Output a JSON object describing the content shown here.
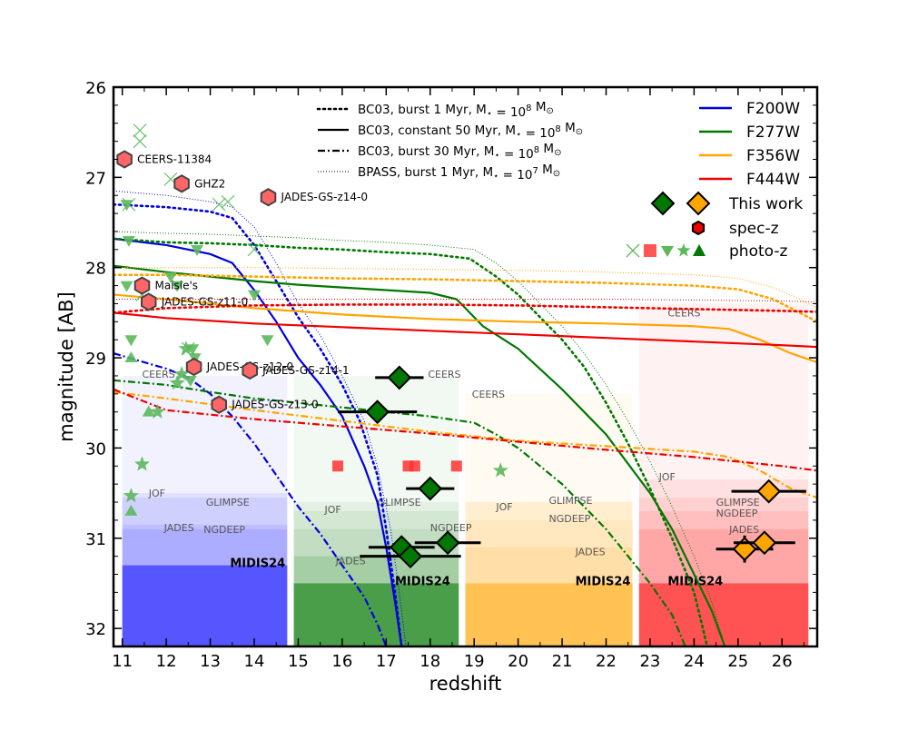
{
  "chart_data": {
    "type": "scatter",
    "title": "",
    "xlabel": "redshift",
    "ylabel": "magnitude [AB]",
    "xlim": [
      10.8,
      26.8
    ],
    "ylim": [
      32.2,
      26.0
    ],
    "x_ticks": [
      11,
      12,
      13,
      14,
      15,
      16,
      17,
      18,
      19,
      20,
      21,
      22,
      23,
      24,
      25,
      26
    ],
    "y_ticks": [
      26,
      27,
      28,
      29,
      30,
      31,
      32
    ],
    "grid": false,
    "colors": {
      "F200W": "#0000dd",
      "F277W": "#007700",
      "F356W": "#ffa500",
      "F444W": "#ee0000",
      "photo_green": "#5cb85c",
      "spec_red": "#ff6666"
    },
    "legend_models": {
      "placement": "top-center",
      "entries": [
        {
          "label": "BC03, burst 1 Myr, M$_\\star$ = 10$^8$ M$_\\odot$",
          "text": "BC03, burst 1 Myr, M",
          "sub": "⋆",
          "mid": " = 10",
          "sup": "8",
          "tail": " M",
          "tailsub": "⊙",
          "style": "dotted"
        },
        {
          "label": "BC03, constant 50 Myr",
          "text": "BC03, constant 50 Myr, M",
          "sub": "⋆",
          "mid": " = 10",
          "sup": "8",
          "tail": " M",
          "tailsub": "⊙",
          "style": "solid"
        },
        {
          "label": "BC03, burst 30 Myr",
          "text": "BC03, burst 30 Myr, M",
          "sub": "⋆",
          "mid": " = 10",
          "sup": "8",
          "tail": " M",
          "tailsub": "⊙",
          "style": "dashdot"
        },
        {
          "label": "BPASS, burst 1 Myr",
          "text": "BPASS, burst 1 Myr, M",
          "sub": "⋆",
          "mid": " = 10",
          "sup": "7",
          "tail": " M",
          "tailsub": "⊙",
          "style": "finedotted"
        }
      ]
    },
    "legend_filters": {
      "placement": "top-right",
      "entries": [
        {
          "label": "F200W",
          "color": "#0000dd"
        },
        {
          "label": "F277W",
          "color": "#007700"
        },
        {
          "label": "F356W",
          "color": "#ffa500"
        },
        {
          "label": "F444W",
          "color": "#ee0000"
        }
      ],
      "markers": [
        {
          "label": "This work"
        },
        {
          "label": "spec-z"
        },
        {
          "label": "photo-z"
        }
      ]
    },
    "survey_regions": [
      {
        "filter": "F200W",
        "x0": 11.0,
        "x1": 14.75,
        "color": "#0000ff",
        "levels": [
          {
            "name": "CEERS",
            "mag": 29.2,
            "opacity": 0.05,
            "label_x": 11.45,
            "label_y": 29.18
          },
          {
            "name": "JOF",
            "mag": 30.5,
            "opacity": 0.07,
            "label_x": 11.6,
            "label_y": 30.5
          },
          {
            "name": "GLIMPSE",
            "mag": 30.55,
            "opacity": 0.07,
            "label_x": 12.9,
            "label_y": 30.6
          },
          {
            "name": "JADES",
            "mag": 30.85,
            "opacity": 0.08,
            "label_x": 11.95,
            "label_y": 30.88
          },
          {
            "name": "NGDEEP",
            "mag": 30.9,
            "opacity": 0.09,
            "label_x": 12.85,
            "label_y": 30.9
          },
          {
            "name": "MIDIS24",
            "mag": 31.3,
            "opacity": 0.5,
            "label_x": 13.45,
            "label_y": 31.28
          }
        ]
      },
      {
        "filter": "F277W",
        "x0": 14.9,
        "x1": 18.65,
        "color": "#007700",
        "levels": [
          {
            "name": "CEERS",
            "mag": 29.2,
            "opacity": 0.05,
            "label_x": 18.95,
            "label_y": 29.4
          },
          {
            "name": "CEERS",
            "mag": 29.2,
            "opacity": 0.0,
            "label_x": 17.95,
            "label_y": 29.18
          },
          {
            "name": "JOF",
            "mag": 30.6,
            "opacity": 0.06,
            "label_x": 15.6,
            "label_y": 30.68
          },
          {
            "name": "GLIMPSE",
            "mag": 30.7,
            "opacity": 0.07,
            "label_x": 16.8,
            "label_y": 30.6
          },
          {
            "name": "NGDEEP",
            "mag": 30.9,
            "opacity": 0.08,
            "label_x": 18.0,
            "label_y": 30.88
          },
          {
            "name": "JADES",
            "mag": 31.2,
            "opacity": 0.15,
            "label_x": 15.85,
            "label_y": 31.25
          },
          {
            "name": "MIDIS24",
            "mag": 31.5,
            "opacity": 0.55,
            "label_x": 17.2,
            "label_y": 31.48
          }
        ]
      },
      {
        "filter": "F356W",
        "x0": 18.8,
        "x1": 22.6,
        "color": "#ffa500",
        "levels": [
          {
            "name": "CEERS",
            "mag": 29.4,
            "opacity": 0.05,
            "label_x": 0,
            "label_y": 0
          },
          {
            "name": "JOF",
            "mag": 30.6,
            "opacity": 0.07,
            "label_x": 19.5,
            "label_y": 30.65
          },
          {
            "name": "GLIMPSE",
            "mag": 30.6,
            "opacity": 0.07,
            "label_x": 20.7,
            "label_y": 30.58
          },
          {
            "name": "NGDEEP",
            "mag": 30.8,
            "opacity": 0.08,
            "label_x": 20.7,
            "label_y": 30.78
          },
          {
            "name": "JADES",
            "mag": 31.1,
            "opacity": 0.12,
            "label_x": 21.3,
            "label_y": 31.15
          },
          {
            "name": "MIDIS24",
            "mag": 31.5,
            "opacity": 0.5,
            "label_x": 21.3,
            "label_y": 31.48
          }
        ]
      },
      {
        "filter": "F444W",
        "x0": 22.75,
        "x1": 26.6,
        "color": "#ff0000",
        "levels": [
          {
            "name": "CEERS",
            "mag": 28.4,
            "opacity": 0.05,
            "label_x": 23.4,
            "label_y": 28.5
          },
          {
            "name": "JOF",
            "mag": 30.35,
            "opacity": 0.07,
            "label_x": 23.2,
            "label_y": 30.32
          },
          {
            "name": "GLIMPSE",
            "mag": 30.55,
            "opacity": 0.07,
            "label_x": 24.5,
            "label_y": 30.6
          },
          {
            "name": "NGDEEP",
            "mag": 30.7,
            "opacity": 0.08,
            "label_x": 24.5,
            "label_y": 30.72
          },
          {
            "name": "JADES",
            "mag": 30.9,
            "opacity": 0.12,
            "label_x": 24.8,
            "label_y": 30.9
          },
          {
            "name": "MIDIS24",
            "mag": 31.5,
            "opacity": 0.5,
            "label_x": 23.4,
            "label_y": 31.48
          }
        ]
      }
    ],
    "model_curves": [
      {
        "filter": "F200W",
        "style": "solid",
        "x": [
          10.8,
          12,
          13,
          13.5,
          14,
          14.5,
          15,
          15.5,
          16,
          16.5,
          16.8,
          17,
          17.2,
          17.35
        ],
        "y": [
          27.68,
          27.75,
          27.85,
          27.95,
          28.25,
          28.6,
          29.0,
          29.3,
          29.65,
          30.2,
          30.6,
          31.1,
          31.7,
          32.2
        ]
      },
      {
        "filter": "F200W",
        "style": "dotted",
        "x": [
          10.8,
          12,
          13,
          13.5,
          14,
          14.5,
          15,
          15.5,
          16,
          16.4,
          16.8,
          17,
          17.2,
          17.35
        ],
        "y": [
          27.3,
          27.33,
          27.38,
          27.45,
          27.75,
          28.15,
          28.55,
          28.9,
          29.3,
          29.7,
          30.3,
          30.9,
          31.6,
          32.2
        ]
      },
      {
        "filter": "F200W",
        "style": "dashdot",
        "x": [
          10.8,
          11.5,
          12,
          12.5,
          13,
          13.5,
          14,
          14.5,
          15,
          15.5,
          16,
          16.5,
          16.8,
          17.0
        ],
        "y": [
          28.95,
          29.05,
          29.12,
          29.22,
          29.4,
          29.65,
          29.95,
          30.3,
          30.65,
          30.95,
          31.3,
          31.65,
          31.95,
          32.2
        ]
      },
      {
        "filter": "F200W",
        "style": "finedotted",
        "x": [
          10.8,
          12,
          13,
          13.5,
          14,
          14.5,
          15,
          15.5,
          16,
          16.5,
          16.8,
          17.1,
          17.3,
          17.45
        ],
        "y": [
          27.15,
          27.2,
          27.27,
          27.33,
          27.55,
          27.95,
          28.4,
          28.75,
          29.2,
          29.7,
          30.2,
          30.9,
          31.6,
          32.2
        ]
      },
      {
        "filter": "F277W",
        "style": "solid",
        "x": [
          10.8,
          12,
          13,
          14,
          15,
          16,
          17,
          18,
          18.6,
          19.2,
          20,
          21,
          22,
          23,
          23.5,
          24,
          24.4,
          24.7
        ],
        "y": [
          27.98,
          28.05,
          28.1,
          28.15,
          28.19,
          28.22,
          28.25,
          28.28,
          28.35,
          28.65,
          28.9,
          29.35,
          29.85,
          30.5,
          30.9,
          31.4,
          31.8,
          32.2
        ]
      },
      {
        "filter": "F277W",
        "style": "dotted",
        "x": [
          10.8,
          12,
          13,
          14,
          15,
          16,
          17,
          18,
          18.9,
          19.5,
          20,
          20.5,
          21,
          21.5,
          22,
          22.5,
          23,
          23.5,
          24,
          24.3
        ],
        "y": [
          27.68,
          27.72,
          27.73,
          27.75,
          27.78,
          27.8,
          27.83,
          27.85,
          27.9,
          28.1,
          28.3,
          28.55,
          28.8,
          29.1,
          29.5,
          29.95,
          30.45,
          31.0,
          31.6,
          32.2
        ]
      },
      {
        "filter": "F277W",
        "style": "dashdot",
        "x": [
          10.8,
          12,
          13,
          14,
          15,
          16,
          17,
          18,
          19,
          19.5,
          20,
          20.5,
          21,
          21.5,
          22,
          22.5,
          23,
          23.5,
          23.8
        ],
        "y": [
          29.25,
          29.3,
          29.38,
          29.45,
          29.5,
          29.55,
          29.6,
          29.65,
          29.72,
          29.85,
          30.0,
          30.2,
          30.4,
          30.65,
          30.9,
          31.2,
          31.5,
          31.85,
          32.2
        ]
      },
      {
        "filter": "F277W",
        "style": "finedotted",
        "x": [
          10.8,
          12,
          13,
          14,
          15,
          16,
          17,
          18,
          19,
          19.5,
          20,
          20.5,
          21,
          21.5,
          22,
          22.5,
          23,
          23.5,
          24,
          24.4,
          24.7
        ],
        "y": [
          27.6,
          27.62,
          27.63,
          27.65,
          27.67,
          27.7,
          27.72,
          27.75,
          27.8,
          27.95,
          28.15,
          28.4,
          28.65,
          28.95,
          29.3,
          29.7,
          30.15,
          30.65,
          31.2,
          31.7,
          32.2
        ]
      },
      {
        "filter": "F356W",
        "style": "solid",
        "x": [
          10.8,
          12,
          14,
          16,
          18,
          20,
          22,
          24,
          24.8,
          25.5,
          26.2,
          26.8
        ],
        "y": [
          28.3,
          28.35,
          28.45,
          28.52,
          28.57,
          28.6,
          28.62,
          28.65,
          28.68,
          28.8,
          28.95,
          29.05
        ]
      },
      {
        "filter": "F356W",
        "style": "dotted",
        "x": [
          10.8,
          12,
          14,
          16,
          18,
          20,
          22,
          24,
          25,
          25.8,
          26.4,
          26.8
        ],
        "y": [
          28.08,
          28.08,
          28.1,
          28.12,
          28.13,
          28.15,
          28.17,
          28.2,
          28.24,
          28.35,
          28.5,
          28.6
        ]
      },
      {
        "filter": "F356W",
        "style": "dashdot",
        "x": [
          10.8,
          12,
          14,
          16,
          18,
          20,
          22,
          24,
          24.8,
          25.5,
          26.2,
          26.8
        ],
        "y": [
          29.38,
          29.45,
          29.58,
          29.7,
          29.82,
          29.92,
          29.98,
          30.04,
          30.1,
          30.25,
          30.45,
          30.55
        ]
      },
      {
        "filter": "F356W",
        "style": "finedotted",
        "x": [
          10.8,
          12,
          14,
          16,
          18,
          20,
          22,
          24,
          25,
          25.8,
          26.4,
          26.8
        ],
        "y": [
          28.0,
          28.0,
          28.0,
          28.01,
          28.02,
          28.03,
          28.05,
          28.08,
          28.12,
          28.22,
          28.35,
          28.45
        ]
      },
      {
        "filter": "F444W",
        "style": "solid",
        "x": [
          10.8,
          12,
          14,
          16,
          18,
          20,
          22,
          24,
          26,
          26.8
        ],
        "y": [
          28.5,
          28.56,
          28.62,
          28.66,
          28.7,
          28.74,
          28.78,
          28.82,
          28.86,
          28.88
        ]
      },
      {
        "filter": "F444W",
        "style": "dotted",
        "x": [
          10.8,
          12,
          14,
          16,
          18,
          20,
          22,
          24,
          26,
          26.8
        ],
        "y": [
          28.5,
          28.45,
          28.42,
          28.41,
          28.41,
          28.42,
          28.44,
          28.46,
          28.48,
          28.49
        ]
      },
      {
        "filter": "F444W",
        "style": "dashdot",
        "x": [
          10.8,
          12,
          14,
          16,
          18,
          20,
          22,
          24,
          26,
          26.8
        ],
        "y": [
          29.35,
          29.58,
          29.68,
          29.76,
          29.84,
          29.93,
          30.02,
          30.1,
          30.2,
          30.25
        ]
      },
      {
        "filter": "F444W",
        "style": "finedotted",
        "x": [
          10.8,
          12,
          14,
          16,
          18,
          20,
          22,
          24,
          26,
          26.8
        ],
        "y": [
          28.35,
          28.35,
          28.35,
          28.35,
          28.35,
          28.35,
          28.35,
          28.36,
          28.37,
          28.38
        ]
      }
    ],
    "this_work": [
      {
        "x": 17.3,
        "y": 29.22,
        "xerr": 0.55,
        "yerr": 0.12,
        "filter": "F277W"
      },
      {
        "x": 16.8,
        "y": 29.6,
        "xerr": 0.9,
        "yerr": 0.12,
        "filter": "F277W"
      },
      {
        "x": 18.0,
        "y": 30.45,
        "xerr": 0.55,
        "yerr": 0.12,
        "filter": "F277W"
      },
      {
        "x": 17.35,
        "y": 31.1,
        "xerr": 0.75,
        "yerr": 0.12,
        "filter": "F277W"
      },
      {
        "x": 17.55,
        "y": 31.2,
        "xerr": 1.15,
        "yerr": 0.12,
        "filter": "F277W"
      },
      {
        "x": 18.4,
        "y": 31.05,
        "xerr": 0.75,
        "yerr": 0.12,
        "filter": "F277W"
      },
      {
        "x": 25.7,
        "y": 30.48,
        "xerr": 0.85,
        "yerr": 0.12,
        "filter": "F356W"
      },
      {
        "x": 25.15,
        "y": 31.12,
        "xerr": 0.65,
        "yerr": 0.15,
        "filter": "F356W"
      },
      {
        "x": 25.6,
        "y": 31.05,
        "xerr": 0.7,
        "yerr": 0.12,
        "filter": "F356W"
      }
    ],
    "spec_z": [
      {
        "x": 11.05,
        "y": 26.8,
        "label": "CEERS-11384"
      },
      {
        "x": 12.35,
        "y": 27.07,
        "label": "GHZ2"
      },
      {
        "x": 14.32,
        "y": 27.22,
        "label": "JADES-GS-z14-0"
      },
      {
        "x": 11.45,
        "y": 28.2,
        "label": "Maisie's"
      },
      {
        "x": 11.6,
        "y": 28.38,
        "label": "JADES-GS-z11-0"
      },
      {
        "x": 12.63,
        "y": 29.1,
        "label": "JADES-GS-z12-0"
      },
      {
        "x": 13.9,
        "y": 29.14,
        "label": "JADES-GS-z14-1"
      },
      {
        "x": 13.2,
        "y": 29.52,
        "label": "JADES-GS-z13-0"
      }
    ],
    "photo_z": {
      "crosses": [
        [
          11.4,
          26.48
        ],
        [
          11.4,
          26.6
        ],
        [
          12.1,
          27.02
        ],
        [
          13.2,
          27.3
        ],
        [
          13.4,
          27.27
        ],
        [
          11.15,
          27.3
        ],
        [
          14.0,
          27.8
        ],
        [
          11.45,
          28.3
        ],
        [
          12.5,
          28.9
        ]
      ],
      "triangles_down": [
        [
          11.1,
          27.3
        ],
        [
          11.15,
          27.7
        ],
        [
          11.1,
          28.2
        ],
        [
          11.2,
          28.8
        ],
        [
          12.1,
          28.1
        ],
        [
          12.25,
          28.2
        ],
        [
          12.7,
          27.8
        ],
        [
          14.0,
          28.3
        ],
        [
          14.3,
          28.8
        ],
        [
          12.6,
          28.9
        ],
        [
          12.65,
          29.0
        ],
        [
          12.55,
          29.25
        ]
      ],
      "stars": [
        [
          11.45,
          30.18
        ],
        [
          11.2,
          30.53
        ],
        [
          11.8,
          29.6
        ],
        [
          12.25,
          29.28
        ],
        [
          12.35,
          29.18
        ],
        [
          19.6,
          30.25
        ],
        [
          12.45,
          28.9
        ]
      ],
      "triangles_up": [
        [
          11.2,
          29.0
        ],
        [
          11.2,
          30.7
        ],
        [
          11.6,
          29.6
        ]
      ],
      "squares": [
        [
          15.9,
          30.2
        ],
        [
          17.5,
          30.2
        ],
        [
          17.65,
          30.2
        ],
        [
          18.6,
          30.2
        ]
      ]
    }
  }
}
